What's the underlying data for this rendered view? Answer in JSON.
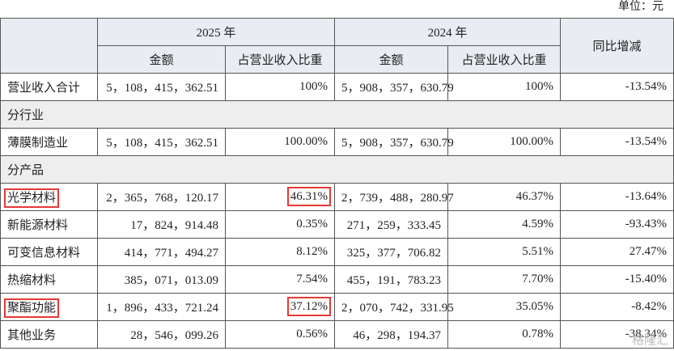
{
  "header": {
    "unit": "单位：元"
  },
  "table": {
    "head": {
      "year1": "2025 年",
      "year2": "2024 年",
      "change": "同比增减",
      "amount1": "金额",
      "share1": "占营业收入比重",
      "amount2": "金额",
      "share2": "占营业收入比重"
    },
    "rows": [
      [
        "营业收入合计",
        "5，108，415，362.51",
        "100%",
        "5，908，357，630.79",
        "100%",
        "-13.54%"
      ],
      [
        "分行业"
      ],
      [
        "薄膜制造业",
        "5，108，415，362.51",
        "100.00%",
        "5，908，357，630.79",
        "100.00%",
        "-13.54%"
      ],
      [
        "分产品"
      ],
      [
        "光学材料",
        "2，365，768，120.17",
        "46.31%",
        "2，739，488，280.97",
        "46.37%",
        "-13.64%"
      ],
      [
        "新能源材料",
        "17，824，914.48",
        "0.35%",
        "271，259，333.45",
        "4.59%",
        "-93.43%"
      ],
      [
        "可变信息材料",
        "414，771，494.27",
        "8.12%",
        "325，377，706.82",
        "5.51%",
        "27.47%"
      ],
      [
        "热缩材料",
        "385，071，013.09",
        "7.54%",
        "455，191，783.23",
        "7.70%",
        "-15.40%"
      ],
      [
        "聚酯功能",
        "1，896，433，721.24",
        "37.12%",
        "2，070，742，331.95",
        "35.05%",
        "-8.42%"
      ],
      [
        "其他业务",
        "28，546，099.26",
        "0.56%",
        "46，298，194.37",
        "0.78%",
        "-38.34%"
      ]
    ]
  },
  "watermark": "格隆汇"
}
